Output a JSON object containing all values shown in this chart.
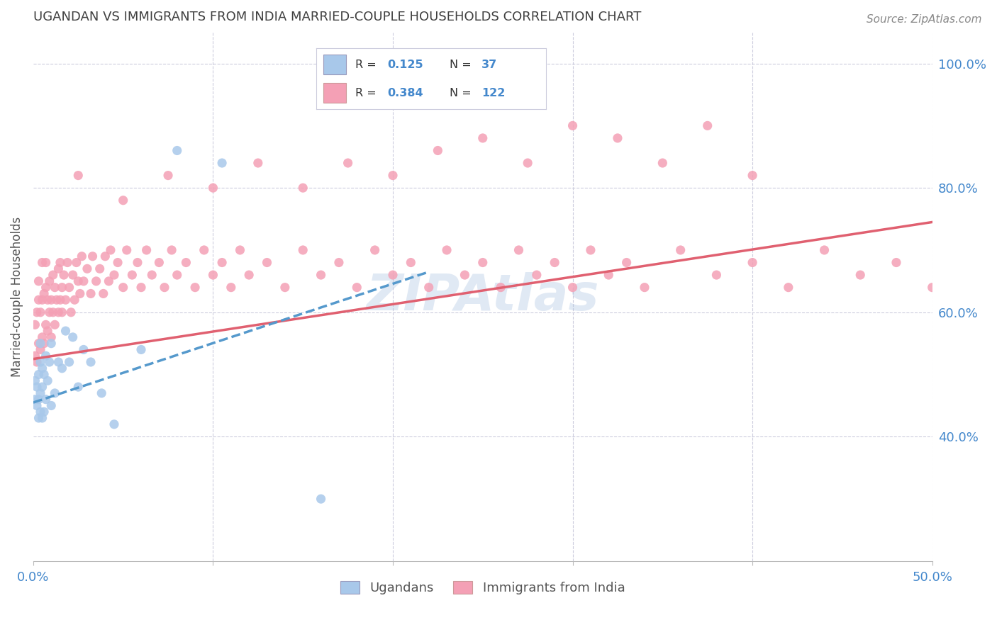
{
  "title": "UGANDAN VS IMMIGRANTS FROM INDIA MARRIED-COUPLE HOUSEHOLDS CORRELATION CHART",
  "source": "Source: ZipAtlas.com",
  "ylabel": "Married-couple Households",
  "xlim": [
    0.0,
    0.5
  ],
  "ylim": [
    0.2,
    1.05
  ],
  "ugandan_color": "#a8c8ea",
  "india_color": "#f4a0b5",
  "ugandan_line_color": "#5599cc",
  "india_line_color": "#e06070",
  "background_color": "#ffffff",
  "grid_color": "#ccccdd",
  "title_color": "#404040",
  "axis_label_color": "#4488cc",
  "ugandan_x": [
    0.001,
    0.001,
    0.002,
    0.002,
    0.003,
    0.003,
    0.003,
    0.004,
    0.004,
    0.004,
    0.004,
    0.005,
    0.005,
    0.005,
    0.006,
    0.006,
    0.007,
    0.007,
    0.008,
    0.009,
    0.01,
    0.01,
    0.012,
    0.014,
    0.016,
    0.018,
    0.02,
    0.022,
    0.025,
    0.028,
    0.032,
    0.038,
    0.045,
    0.06,
    0.08,
    0.105,
    0.16
  ],
  "ugandan_y": [
    0.46,
    0.49,
    0.45,
    0.48,
    0.43,
    0.46,
    0.5,
    0.44,
    0.47,
    0.52,
    0.55,
    0.43,
    0.48,
    0.51,
    0.44,
    0.5,
    0.46,
    0.53,
    0.49,
    0.52,
    0.45,
    0.55,
    0.47,
    0.52,
    0.51,
    0.57,
    0.52,
    0.56,
    0.48,
    0.54,
    0.52,
    0.47,
    0.42,
    0.54,
    0.86,
    0.84,
    0.3
  ],
  "india_x": [
    0.001,
    0.001,
    0.002,
    0.002,
    0.003,
    0.003,
    0.003,
    0.004,
    0.004,
    0.005,
    0.005,
    0.005,
    0.006,
    0.006,
    0.007,
    0.007,
    0.007,
    0.008,
    0.008,
    0.009,
    0.009,
    0.01,
    0.01,
    0.011,
    0.011,
    0.012,
    0.012,
    0.013,
    0.014,
    0.014,
    0.015,
    0.015,
    0.016,
    0.016,
    0.017,
    0.018,
    0.019,
    0.02,
    0.021,
    0.022,
    0.023,
    0.024,
    0.025,
    0.026,
    0.027,
    0.028,
    0.03,
    0.032,
    0.033,
    0.035,
    0.037,
    0.039,
    0.04,
    0.042,
    0.043,
    0.045,
    0.047,
    0.05,
    0.052,
    0.055,
    0.058,
    0.06,
    0.063,
    0.066,
    0.07,
    0.073,
    0.077,
    0.08,
    0.085,
    0.09,
    0.095,
    0.1,
    0.105,
    0.11,
    0.115,
    0.12,
    0.13,
    0.14,
    0.15,
    0.16,
    0.17,
    0.18,
    0.19,
    0.2,
    0.21,
    0.22,
    0.23,
    0.24,
    0.25,
    0.26,
    0.27,
    0.28,
    0.29,
    0.3,
    0.31,
    0.32,
    0.33,
    0.34,
    0.36,
    0.38,
    0.4,
    0.42,
    0.44,
    0.46,
    0.48,
    0.5,
    0.025,
    0.05,
    0.075,
    0.1,
    0.125,
    0.15,
    0.175,
    0.2,
    0.225,
    0.25,
    0.275,
    0.3,
    0.325,
    0.35,
    0.375,
    0.4
  ],
  "india_y": [
    0.53,
    0.58,
    0.52,
    0.6,
    0.55,
    0.62,
    0.65,
    0.54,
    0.6,
    0.56,
    0.62,
    0.68,
    0.55,
    0.63,
    0.58,
    0.64,
    0.68,
    0.57,
    0.62,
    0.6,
    0.65,
    0.56,
    0.62,
    0.6,
    0.66,
    0.58,
    0.64,
    0.62,
    0.6,
    0.67,
    0.62,
    0.68,
    0.64,
    0.6,
    0.66,
    0.62,
    0.68,
    0.64,
    0.6,
    0.66,
    0.62,
    0.68,
    0.65,
    0.63,
    0.69,
    0.65,
    0.67,
    0.63,
    0.69,
    0.65,
    0.67,
    0.63,
    0.69,
    0.65,
    0.7,
    0.66,
    0.68,
    0.64,
    0.7,
    0.66,
    0.68,
    0.64,
    0.7,
    0.66,
    0.68,
    0.64,
    0.7,
    0.66,
    0.68,
    0.64,
    0.7,
    0.66,
    0.68,
    0.64,
    0.7,
    0.66,
    0.68,
    0.64,
    0.7,
    0.66,
    0.68,
    0.64,
    0.7,
    0.66,
    0.68,
    0.64,
    0.7,
    0.66,
    0.68,
    0.64,
    0.7,
    0.66,
    0.68,
    0.64,
    0.7,
    0.66,
    0.68,
    0.64,
    0.7,
    0.66,
    0.68,
    0.64,
    0.7,
    0.66,
    0.68,
    0.64,
    0.82,
    0.78,
    0.82,
    0.8,
    0.84,
    0.8,
    0.84,
    0.82,
    0.86,
    0.88,
    0.84,
    0.9,
    0.88,
    0.84,
    0.9,
    0.82
  ],
  "india_line_x0": 0.0,
  "india_line_y0": 0.525,
  "india_line_x1": 0.5,
  "india_line_y1": 0.745,
  "ugandan_line_x0": 0.0,
  "ugandan_line_y0": 0.455,
  "ugandan_line_x1": 0.22,
  "ugandan_line_y1": 0.665
}
